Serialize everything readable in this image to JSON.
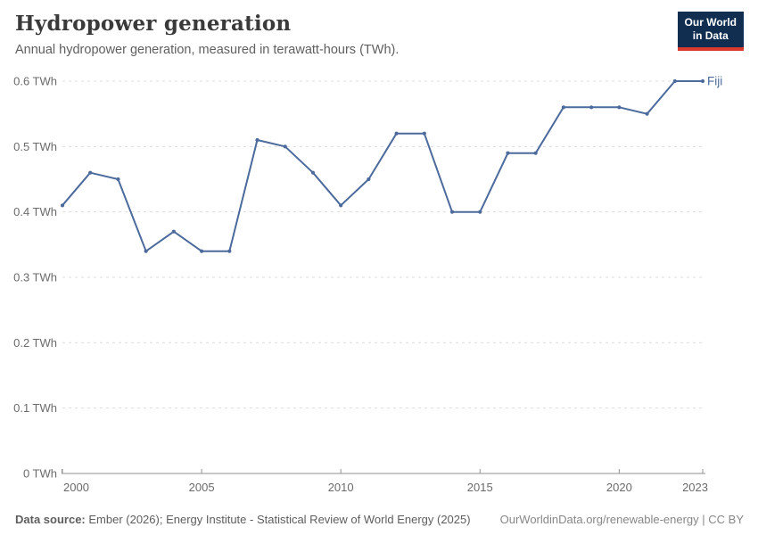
{
  "header": {
    "title": "Hydropower generation",
    "subtitle": "Annual hydropower generation, measured in terawatt-hours (TWh).",
    "logo": {
      "line1": "Our World",
      "line2": "in Data"
    }
  },
  "chart_data": {
    "type": "line",
    "title": "Hydropower generation",
    "unit": "TWh",
    "xlim": [
      2000,
      2023
    ],
    "ylim": [
      0,
      0.6
    ],
    "grid": "horizontal-dashed",
    "legend_position": "end-of-line-label",
    "x": [
      2000,
      2001,
      2002,
      2003,
      2004,
      2005,
      2006,
      2007,
      2008,
      2009,
      2010,
      2011,
      2012,
      2013,
      2014,
      2015,
      2016,
      2017,
      2018,
      2019,
      2020,
      2021,
      2022,
      2023
    ],
    "series": [
      {
        "name": "Fiji",
        "color": "#4c6a9c",
        "values": [
          0.41,
          0.46,
          0.45,
          0.34,
          0.37,
          0.34,
          0.34,
          0.51,
          0.5,
          0.46,
          0.41,
          0.45,
          0.52,
          0.52,
          0.4,
          0.4,
          0.49,
          0.49,
          0.56,
          0.56,
          0.56,
          0.55,
          0.6,
          0.6
        ]
      }
    ],
    "xticks": [
      2000,
      2005,
      2010,
      2015,
      2020,
      2023
    ],
    "yticks": [
      0,
      0.1,
      0.2,
      0.3,
      0.4,
      0.5,
      0.6
    ],
    "ytick_labels": [
      "0 TWh",
      "0.1 TWh",
      "0.2 TWh",
      "0.3 TWh",
      "0.4 TWh",
      "0.5 TWh",
      "0.6 TWh"
    ]
  },
  "footer": {
    "data_source_label": "Data source:",
    "data_source_text": " Ember (2026); Energy Institute - Statistical Review of World Energy (2025)",
    "right_text": "OurWorldinData.org/renewable-energy | CC BY"
  },
  "colors": {
    "line": "#4c6a9c",
    "grid": "#dcdcdc",
    "axis": "#929292",
    "tick_text": "#6b6b6b",
    "logo_bg": "#112e51",
    "logo_bar": "#dc3a2f"
  }
}
